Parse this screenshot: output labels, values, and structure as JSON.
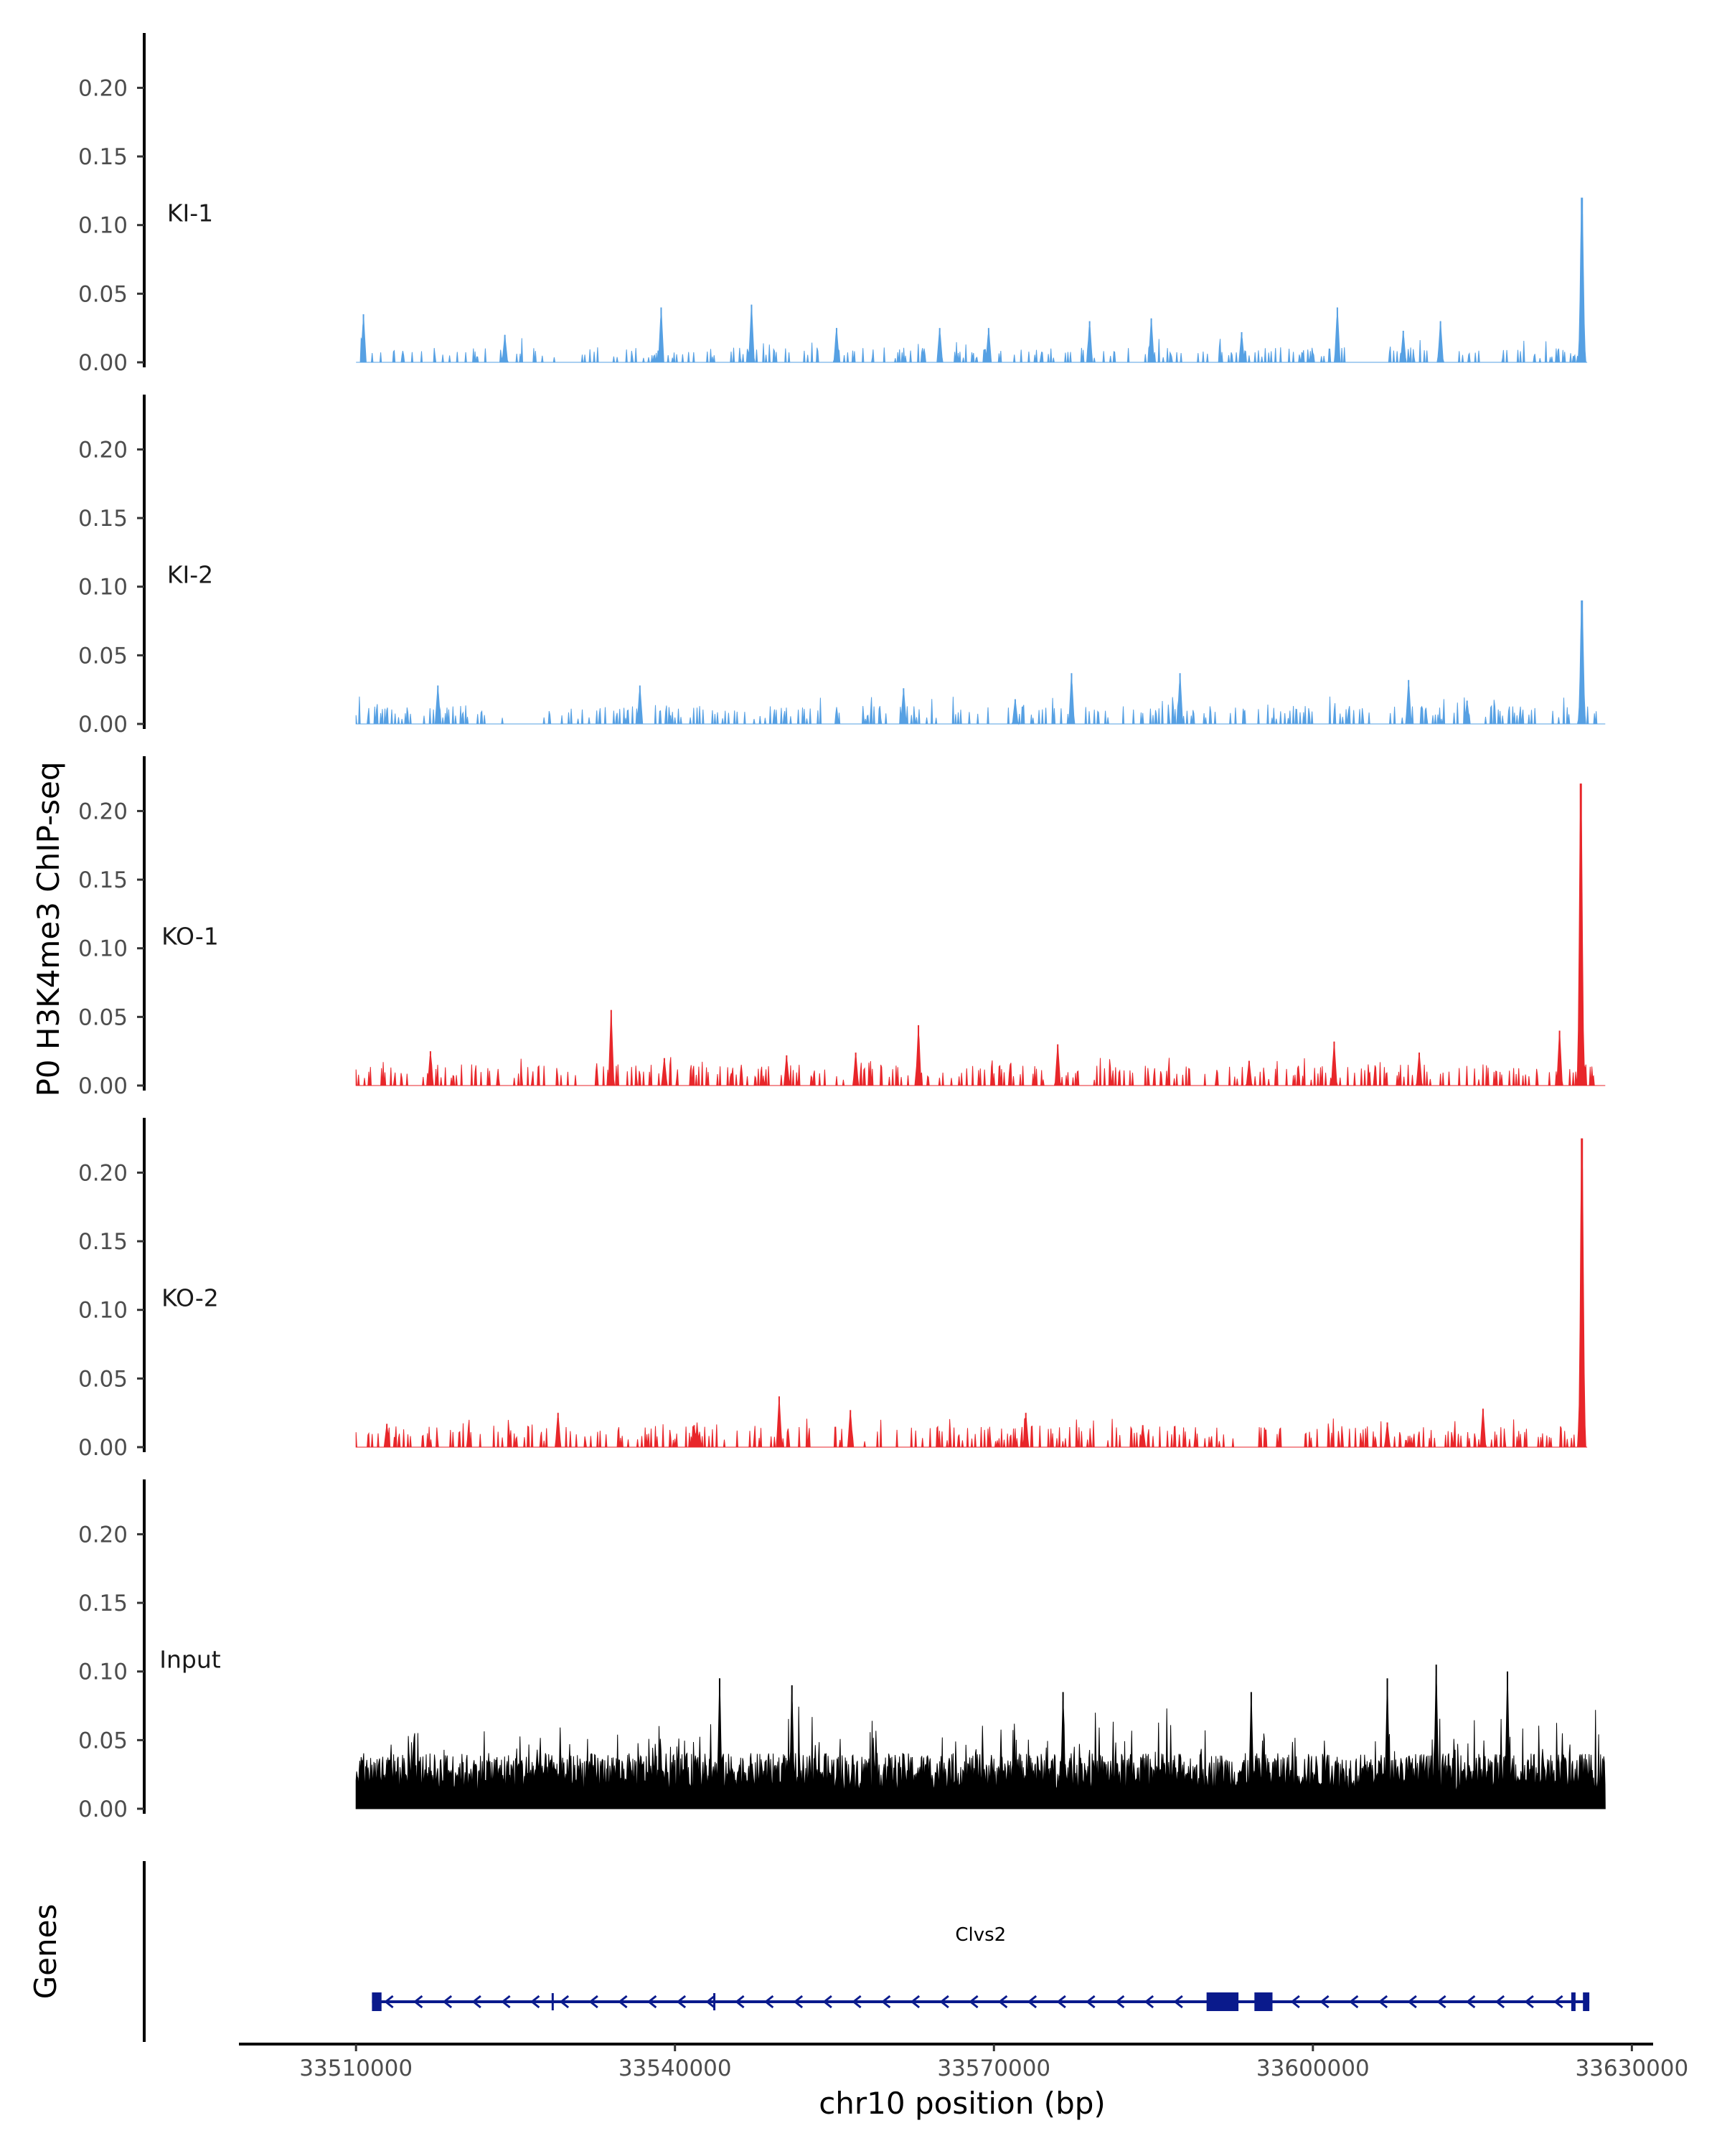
{
  "chart_data": {
    "type": "area",
    "ylabel": "P0 H3K4me3 ChIP-seq",
    "xlabel": "chr10 position (bp)",
    "genes_label": "Genes",
    "xlim": [
      33500000,
      33632000
    ],
    "ylim": [
      0,
      0.235
    ],
    "x_ticks": [
      33510000,
      33540000,
      33570000,
      33600000,
      33630000
    ],
    "x_tick_labels": [
      "33510000",
      "33540000",
      "33570000",
      "33600000",
      "33630000"
    ],
    "y_ticks": [
      0,
      0.05,
      0.1,
      0.15,
      0.2
    ],
    "y_tick_labels": [
      "0.00",
      "0.05",
      "0.10",
      "0.15",
      "0.20"
    ],
    "data_start": 33510000,
    "data_end": 33627500,
    "tracks": [
      {
        "name": "KI-1",
        "color": "#56A0E3",
        "style": "sparse",
        "baseline": 0.005,
        "end": 33625800,
        "gaps": [
          [
            33528800,
            33531000
          ],
          [
            33563600,
            33566200
          ],
          [
            33603000,
            33606300
          ]
        ],
        "peaks": [
          [
            33510700,
            0.035
          ],
          [
            33524000,
            0.02
          ],
          [
            33538700,
            0.04
          ],
          [
            33547200,
            0.042
          ],
          [
            33555200,
            0.025
          ],
          [
            33564900,
            0.025
          ],
          [
            33569500,
            0.025
          ],
          [
            33579000,
            0.03
          ],
          [
            33584800,
            0.032
          ],
          [
            33593300,
            0.022
          ],
          [
            33602300,
            0.04
          ],
          [
            33608500,
            0.023
          ],
          [
            33612000,
            0.03
          ]
        ],
        "main_peak": {
          "x": 33625300,
          "y": 0.12
        }
      },
      {
        "name": "KI-2",
        "color": "#56A0E3",
        "style": "sparse",
        "baseline": 0.006,
        "end": 33627500,
        "gaps": [
          [
            33525500,
            33527600
          ],
          [
            33555800,
            33557400
          ]
        ],
        "peaks": [
          [
            33517700,
            0.028
          ],
          [
            33536700,
            0.028
          ],
          [
            33561500,
            0.026
          ],
          [
            33572000,
            0.018
          ],
          [
            33577300,
            0.037
          ],
          [
            33587500,
            0.037
          ],
          [
            33609000,
            0.032
          ],
          [
            33614500,
            0.017
          ]
        ],
        "main_peak": {
          "x": 33625300,
          "y": 0.09
        }
      },
      {
        "name": "KO-1",
        "color": "#E8262A",
        "style": "sparse",
        "baseline": 0.007,
        "end": 33627500,
        "gaps": [],
        "peaks": [
          [
            33517000,
            0.025
          ],
          [
            33534000,
            0.055
          ],
          [
            33539000,
            0.02
          ],
          [
            33550500,
            0.022
          ],
          [
            33557000,
            0.024
          ],
          [
            33562900,
            0.044
          ],
          [
            33576000,
            0.03
          ],
          [
            33594000,
            0.018
          ],
          [
            33602000,
            0.032
          ],
          [
            33610000,
            0.024
          ],
          [
            33623200,
            0.04
          ]
        ],
        "main_peak": {
          "x": 33625200,
          "y": 0.22
        }
      },
      {
        "name": "KO-2",
        "color": "#E8262A",
        "style": "sparse",
        "baseline": 0.007,
        "end": 33625800,
        "gaps": [],
        "peaks": [
          [
            33512900,
            0.017
          ],
          [
            33529000,
            0.025
          ],
          [
            33541800,
            0.016
          ],
          [
            33549800,
            0.037
          ],
          [
            33556500,
            0.027
          ],
          [
            33573000,
            0.025
          ],
          [
            33584000,
            0.016
          ],
          [
            33607000,
            0.018
          ],
          [
            33616000,
            0.028
          ]
        ],
        "main_peak": {
          "x": 33625300,
          "y": 0.225
        }
      },
      {
        "name": "Input",
        "color": "#000000",
        "style": "dense",
        "baseline": 0.03,
        "end": 33627500,
        "gaps": [],
        "peaks": [
          [
            33544200,
            0.095
          ],
          [
            33551000,
            0.09
          ],
          [
            33576500,
            0.085
          ],
          [
            33594200,
            0.085
          ],
          [
            33607000,
            0.095
          ],
          [
            33611600,
            0.105
          ],
          [
            33618300,
            0.1
          ]
        ],
        "main_peak": null
      }
    ],
    "gene_track": {
      "name": "Clvs2",
      "strand": "-",
      "color": "#0A1A8C",
      "start": 33511500,
      "end": 33626000,
      "exons": [
        [
          33511500,
          33512400
        ],
        [
          33590000,
          33593000
        ],
        [
          33594500,
          33596200
        ],
        [
          33624300,
          33624700
        ],
        [
          33625400,
          33626000
        ]
      ],
      "utr_marks": [
        33528500,
        33543700
      ]
    }
  }
}
